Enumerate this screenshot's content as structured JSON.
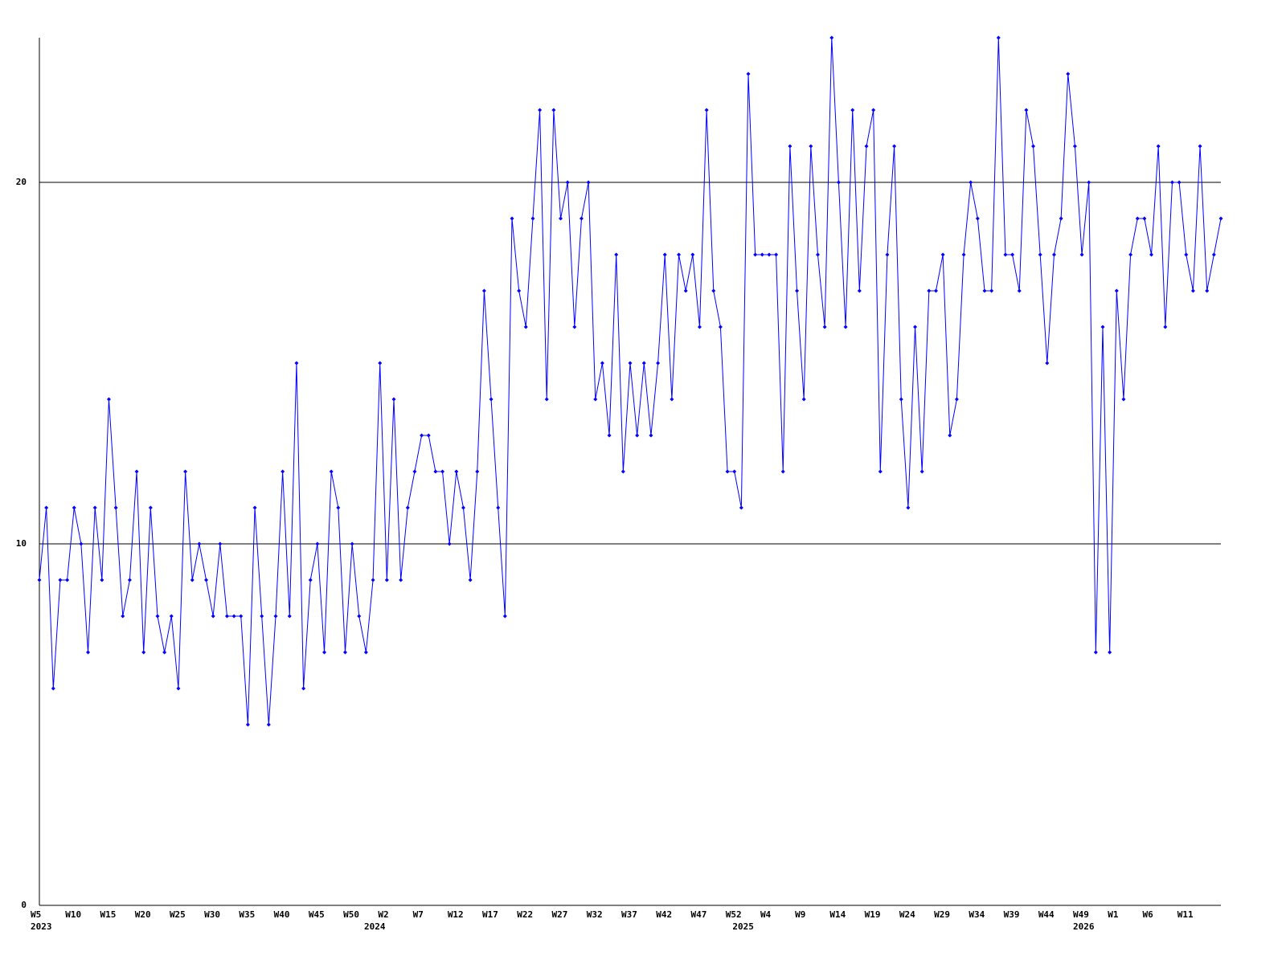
{
  "chart_data": {
    "type": "line",
    "color": "#0000ff",
    "categories": [
      "W5",
      null,
      null,
      null,
      null,
      "W10",
      null,
      null,
      null,
      null,
      "W15",
      null,
      null,
      null,
      null,
      "W20",
      null,
      null,
      null,
      null,
      "W25",
      null,
      null,
      null,
      null,
      "W30",
      null,
      null,
      null,
      null,
      "W35",
      null,
      null,
      null,
      null,
      "W40",
      null,
      null,
      null,
      null,
      "W45",
      null,
      null,
      null,
      null,
      "W50",
      null,
      null,
      null,
      null,
      "W2",
      null,
      null,
      null,
      null,
      "W7",
      null,
      null,
      null,
      null,
      "W12",
      null,
      null,
      null,
      null,
      "W17",
      null,
      null,
      null,
      null,
      "W22",
      null,
      null,
      null,
      null,
      "W27",
      null,
      null,
      null,
      null,
      "W32",
      null,
      null,
      null,
      null,
      "W37",
      null,
      null,
      null,
      null,
      "W42",
      null,
      null,
      null,
      null,
      "W47",
      null,
      null,
      null,
      null,
      "W52",
      null,
      null,
      null,
      null,
      "W4",
      null,
      null,
      null,
      null,
      "W9",
      null,
      null,
      null,
      null,
      "W14",
      null,
      null,
      null,
      null,
      "W19",
      null,
      null,
      null,
      null,
      "W24",
      null,
      null,
      null,
      null,
      "W29",
      null,
      null,
      null,
      null,
      "W34",
      null,
      null,
      null,
      null,
      "W39",
      null,
      null,
      null,
      null,
      "W44",
      null,
      null,
      null,
      null,
      "W49",
      null,
      null,
      null,
      null,
      "W1",
      null,
      null,
      null,
      null,
      "W6",
      null,
      null,
      null,
      null,
      "W11",
      null,
      null,
      null,
      null,
      null
    ],
    "years": [
      "2023",
      null,
      null,
      null,
      null,
      null,
      null,
      null,
      null,
      null,
      null,
      null,
      null,
      null,
      null,
      null,
      null,
      null,
      null,
      null,
      null,
      null,
      null,
      null,
      null,
      null,
      null,
      null,
      null,
      null,
      null,
      null,
      null,
      null,
      null,
      null,
      null,
      null,
      null,
      null,
      null,
      null,
      null,
      null,
      null,
      null,
      null,
      null,
      "2024",
      null,
      null,
      null,
      null,
      null,
      null,
      null,
      null,
      null,
      null,
      null,
      null,
      null,
      null,
      null,
      null,
      null,
      null,
      null,
      null,
      null,
      null,
      null,
      null,
      null,
      null,
      null,
      null,
      null,
      null,
      null,
      null,
      null,
      null,
      null,
      null,
      null,
      null,
      null,
      null,
      null,
      null,
      null,
      null,
      null,
      null,
      null,
      null,
      null,
      null,
      null,
      null,
      "2025",
      null,
      null,
      null,
      null,
      null,
      null,
      null,
      null,
      null,
      null,
      null,
      null,
      null,
      null,
      null,
      null,
      null,
      null,
      null,
      null,
      null,
      null,
      null,
      null,
      null,
      null,
      null,
      null,
      null,
      null,
      null,
      null,
      null,
      null,
      null,
      null,
      null,
      null,
      null,
      null,
      null,
      null,
      null,
      null,
      null,
      null,
      null,
      null,
      "2026",
      null,
      null,
      null,
      null,
      null,
      null,
      null,
      null,
      null,
      null,
      null,
      null,
      null,
      null,
      null,
      null
    ],
    "values": [
      9,
      11,
      6,
      9,
      9,
      11,
      10,
      7,
      11,
      9,
      14,
      11,
      8,
      9,
      12,
      7,
      11,
      8,
      7,
      8,
      6,
      12,
      9,
      10,
      9,
      8,
      10,
      8,
      8,
      8,
      5,
      11,
      8,
      5,
      8,
      12,
      8,
      15,
      6,
      9,
      10,
      7,
      12,
      11,
      7,
      10,
      8,
      7,
      9,
      15,
      9,
      14,
      9,
      11,
      12,
      13,
      13,
      12,
      12,
      10,
      12,
      11,
      9,
      12,
      17,
      14,
      11,
      8,
      19,
      17,
      16,
      19,
      22,
      14,
      22,
      19,
      20,
      16,
      19,
      20,
      14,
      15,
      13,
      18,
      12,
      15,
      13,
      15,
      13,
      15,
      18,
      14,
      18,
      17,
      18,
      16,
      22,
      17,
      16,
      12,
      12,
      11,
      23,
      18,
      18,
      18,
      18,
      12,
      21,
      17,
      14,
      21,
      18,
      16,
      24,
      20,
      16,
      22,
      17,
      21,
      22,
      12,
      18,
      21,
      14,
      11,
      16,
      12,
      17,
      17,
      18,
      13,
      14,
      18,
      20,
      19,
      17,
      17,
      24,
      18,
      18,
      17,
      22,
      21,
      18,
      15,
      18,
      19,
      23,
      21,
      18,
      20,
      7,
      16,
      7,
      17,
      14,
      18,
      19,
      19,
      18,
      21,
      16,
      20,
      20,
      18,
      17,
      21,
      17,
      18,
      19
    ],
    "ylim": [
      0,
      24
    ],
    "yticks": [
      0,
      10,
      20
    ],
    "grid": true
  }
}
